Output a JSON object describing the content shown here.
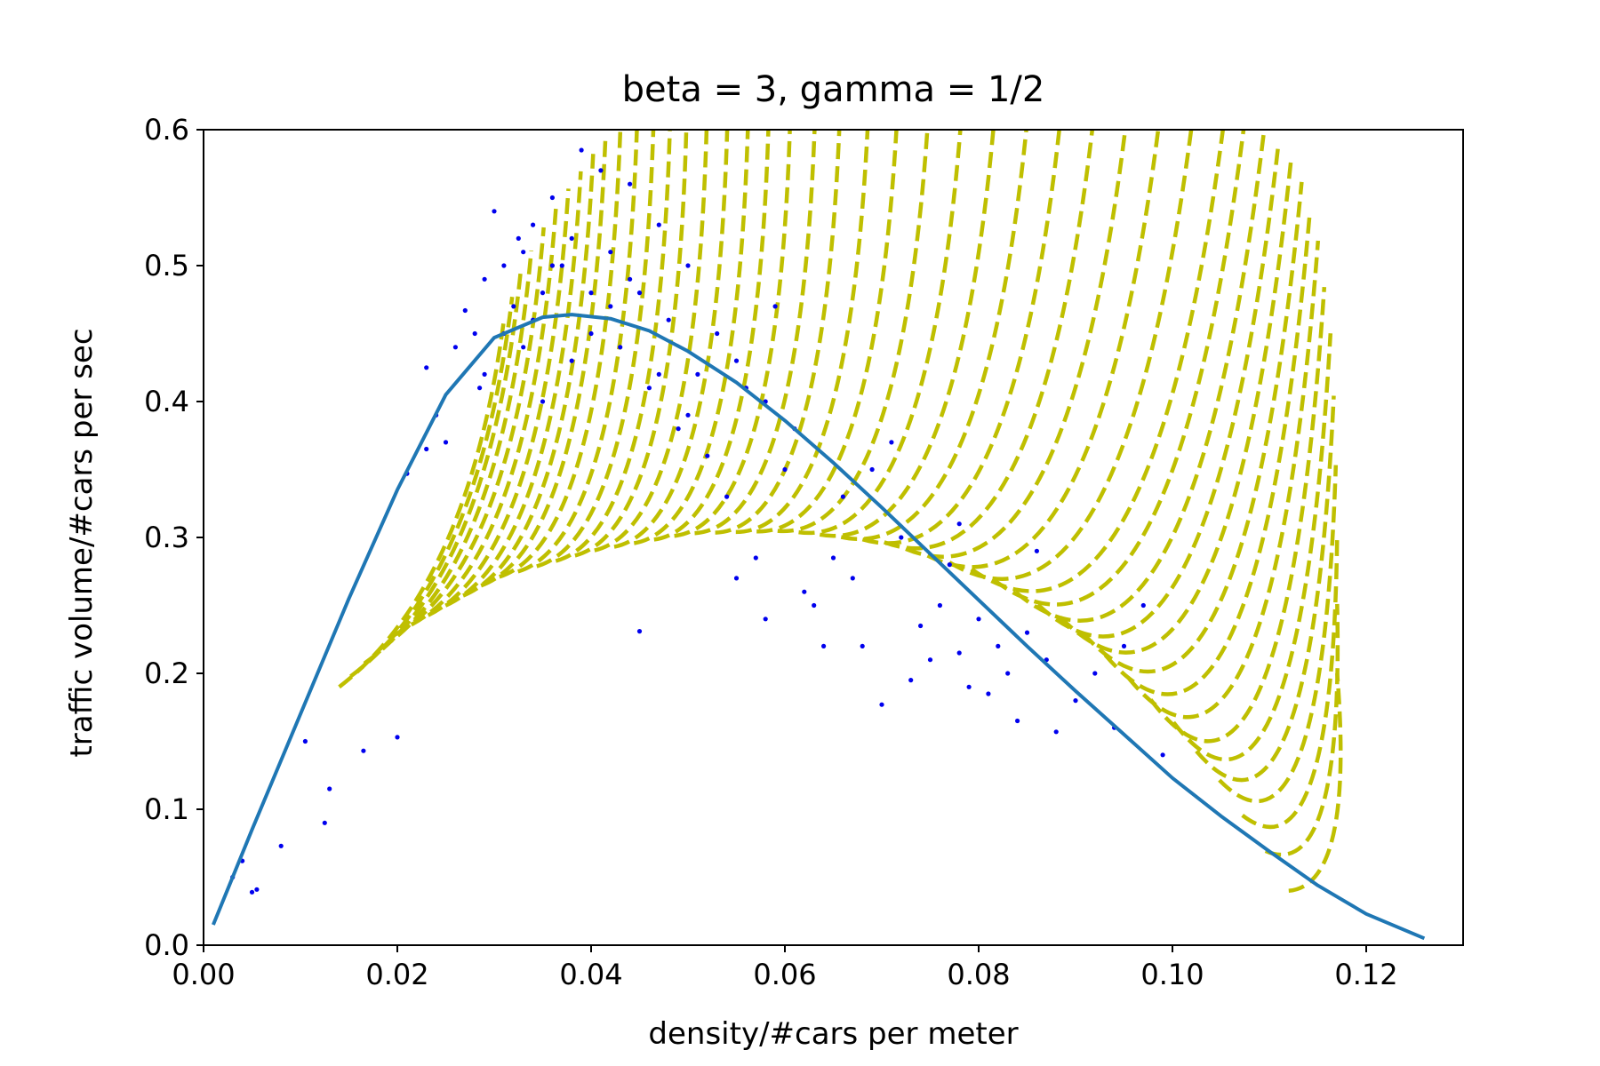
{
  "chart_data": {
    "type": "scatter",
    "title": "beta = 3, gamma = 1/2",
    "xlabel": "density/#cars per meter",
    "ylabel": "traffic volume/#cars per sec",
    "xlim": [
      0.0,
      0.13
    ],
    "ylim": [
      0.0,
      0.6
    ],
    "xticks": [
      "0.00",
      "0.02",
      "0.04",
      "0.06",
      "0.08",
      "0.10",
      "0.12"
    ],
    "yticks": [
      "0.0",
      "0.1",
      "0.2",
      "0.3",
      "0.4",
      "0.5",
      "0.6"
    ],
    "grid": false,
    "legend": "none",
    "colors": {
      "points": "#0000ee",
      "fit_curve": "#1f77b4",
      "dashed_curves": "#bfbf00",
      "axes": "#000000"
    },
    "series": [
      {
        "kind": "scatter",
        "points": [
          [
            0.003,
            0.05
          ],
          [
            0.004,
            0.062
          ],
          [
            0.005,
            0.039
          ],
          [
            0.0055,
            0.041
          ],
          [
            0.008,
            0.073
          ],
          [
            0.0105,
            0.15
          ],
          [
            0.0125,
            0.09
          ],
          [
            0.013,
            0.115
          ],
          [
            0.0165,
            0.143
          ],
          [
            0.02,
            0.153
          ],
          [
            0.021,
            0.347
          ],
          [
            0.023,
            0.425
          ],
          [
            0.023,
            0.365
          ],
          [
            0.024,
            0.39
          ],
          [
            0.025,
            0.37
          ],
          [
            0.026,
            0.44
          ],
          [
            0.027,
            0.467
          ],
          [
            0.028,
            0.45
          ],
          [
            0.029,
            0.42
          ],
          [
            0.03,
            0.54
          ],
          [
            0.031,
            0.45
          ],
          [
            0.031,
            0.5
          ],
          [
            0.032,
            0.47
          ],
          [
            0.033,
            0.51
          ],
          [
            0.034,
            0.53
          ],
          [
            0.035,
            0.48
          ],
          [
            0.036,
            0.55
          ],
          [
            0.037,
            0.5
          ],
          [
            0.038,
            0.52
          ],
          [
            0.039,
            0.585
          ],
          [
            0.04,
            0.45
          ],
          [
            0.041,
            0.57
          ],
          [
            0.042,
            0.51
          ],
          [
            0.043,
            0.44
          ],
          [
            0.044,
            0.56
          ],
          [
            0.045,
            0.48
          ],
          [
            0.046,
            0.41
          ],
          [
            0.047,
            0.53
          ],
          [
            0.048,
            0.46
          ],
          [
            0.049,
            0.38
          ],
          [
            0.05,
            0.5
          ],
          [
            0.051,
            0.42
          ],
          [
            0.052,
            0.36
          ],
          [
            0.053,
            0.45
          ],
          [
            0.054,
            0.33
          ],
          [
            0.055,
            0.27
          ],
          [
            0.056,
            0.41
          ],
          [
            0.057,
            0.285
          ],
          [
            0.058,
            0.24
          ],
          [
            0.059,
            0.47
          ],
          [
            0.06,
            0.35
          ],
          [
            0.062,
            0.26
          ],
          [
            0.063,
            0.25
          ],
          [
            0.064,
            0.22
          ],
          [
            0.065,
            0.285
          ],
          [
            0.067,
            0.27
          ],
          [
            0.068,
            0.22
          ],
          [
            0.07,
            0.177
          ],
          [
            0.071,
            0.37
          ],
          [
            0.072,
            0.3
          ],
          [
            0.073,
            0.195
          ],
          [
            0.074,
            0.235
          ],
          [
            0.075,
            0.21
          ],
          [
            0.076,
            0.25
          ],
          [
            0.077,
            0.28
          ],
          [
            0.078,
            0.215
          ],
          [
            0.079,
            0.19
          ],
          [
            0.08,
            0.24
          ],
          [
            0.081,
            0.185
          ],
          [
            0.082,
            0.22
          ],
          [
            0.083,
            0.2
          ],
          [
            0.084,
            0.165
          ],
          [
            0.085,
            0.23
          ],
          [
            0.086,
            0.29
          ],
          [
            0.087,
            0.21
          ],
          [
            0.088,
            0.157
          ],
          [
            0.09,
            0.18
          ],
          [
            0.092,
            0.2
          ],
          [
            0.094,
            0.16
          ],
          [
            0.095,
            0.22
          ],
          [
            0.097,
            0.25
          ],
          [
            0.099,
            0.14
          ],
          [
            0.04,
            0.48
          ],
          [
            0.036,
            0.5
          ],
          [
            0.034,
            0.46
          ],
          [
            0.038,
            0.43
          ],
          [
            0.042,
            0.47
          ],
          [
            0.044,
            0.49
          ],
          [
            0.033,
            0.44
          ],
          [
            0.029,
            0.49
          ],
          [
            0.045,
            0.231
          ],
          [
            0.0285,
            0.41
          ],
          [
            0.0325,
            0.52
          ],
          [
            0.035,
            0.4
          ],
          [
            0.047,
            0.42
          ],
          [
            0.05,
            0.39
          ],
          [
            0.055,
            0.43
          ],
          [
            0.058,
            0.4
          ],
          [
            0.061,
            0.38
          ],
          [
            0.066,
            0.33
          ],
          [
            0.069,
            0.35
          ],
          [
            0.078,
            0.31
          ]
        ]
      },
      {
        "kind": "line",
        "name": "",
        "x": [
          0.001,
          0.005,
          0.01,
          0.015,
          0.02,
          0.025,
          0.03,
          0.035,
          0.038,
          0.042,
          0.046,
          0.05,
          0.055,
          0.06,
          0.065,
          0.07,
          0.075,
          0.08,
          0.085,
          0.09,
          0.095,
          0.1,
          0.105,
          0.11,
          0.115,
          0.12,
          0.126
        ],
        "y": [
          0.015,
          0.085,
          0.17,
          0.255,
          0.335,
          0.405,
          0.447,
          0.462,
          0.464,
          0.461,
          0.452,
          0.437,
          0.414,
          0.386,
          0.355,
          0.322,
          0.288,
          0.254,
          0.22,
          0.187,
          0.155,
          0.123,
          0.095,
          0.069,
          0.044,
          0.023,
          0.005
        ]
      },
      {
        "kind": "dashed-curve-family",
        "count": 48,
        "lower_envelope": {
          "x": [
            0.014,
            0.02,
            0.03,
            0.04,
            0.05,
            0.06,
            0.07,
            0.08,
            0.09,
            0.1,
            0.105,
            0.11,
            0.112
          ],
          "y": [
            0.19,
            0.23,
            0.27,
            0.29,
            0.303,
            0.305,
            0.297,
            0.275,
            0.235,
            0.165,
            0.12,
            0.065,
            0.04
          ]
        },
        "top_ends": {
          "x": [
            0.031,
            0.033,
            0.036,
            0.039,
            0.042,
            0.046,
            0.05,
            0.055,
            0.06,
            0.066,
            0.073,
            0.081,
            0.089,
            0.097,
            0.105,
            0.11,
            0.113,
            0.115,
            0.1165,
            0.117,
            0.117
          ],
          "y": [
            0.46,
            0.5,
            0.54,
            0.57,
            0.6,
            0.6,
            0.6,
            0.6,
            0.6,
            0.6,
            0.6,
            0.6,
            0.6,
            0.6,
            0.6,
            0.6,
            0.57,
            0.52,
            0.44,
            0.32,
            0.2
          ]
        }
      }
    ]
  }
}
